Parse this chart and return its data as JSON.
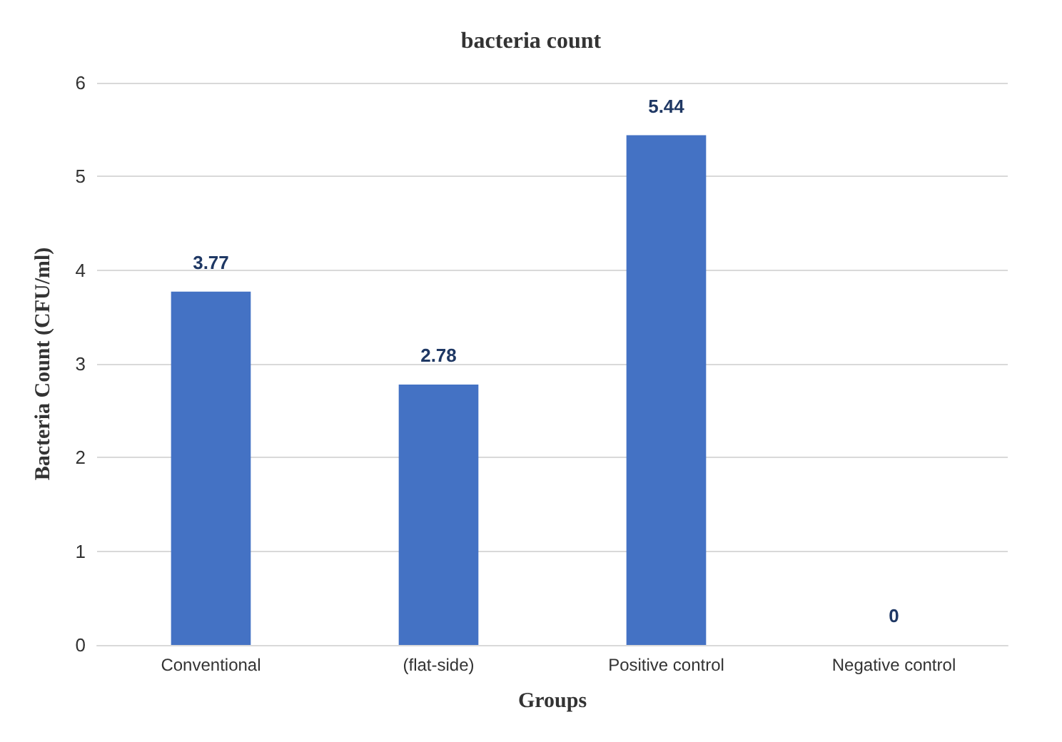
{
  "chart_data": {
    "type": "bar",
    "title": "bacteria count",
    "xlabel": "Groups",
    "ylabel": "Bacteria Count (CFU/ml)",
    "categories": [
      "Conventional",
      "(flat-side)",
      "Positive control",
      "Negative control"
    ],
    "values": [
      3.77,
      2.78,
      5.44,
      0
    ],
    "color": "#4472c4",
    "data_labels": true,
    "ylim": [
      0,
      6
    ],
    "yticks": [
      0,
      1,
      2,
      3,
      4,
      5,
      6
    ],
    "grid": "y"
  }
}
